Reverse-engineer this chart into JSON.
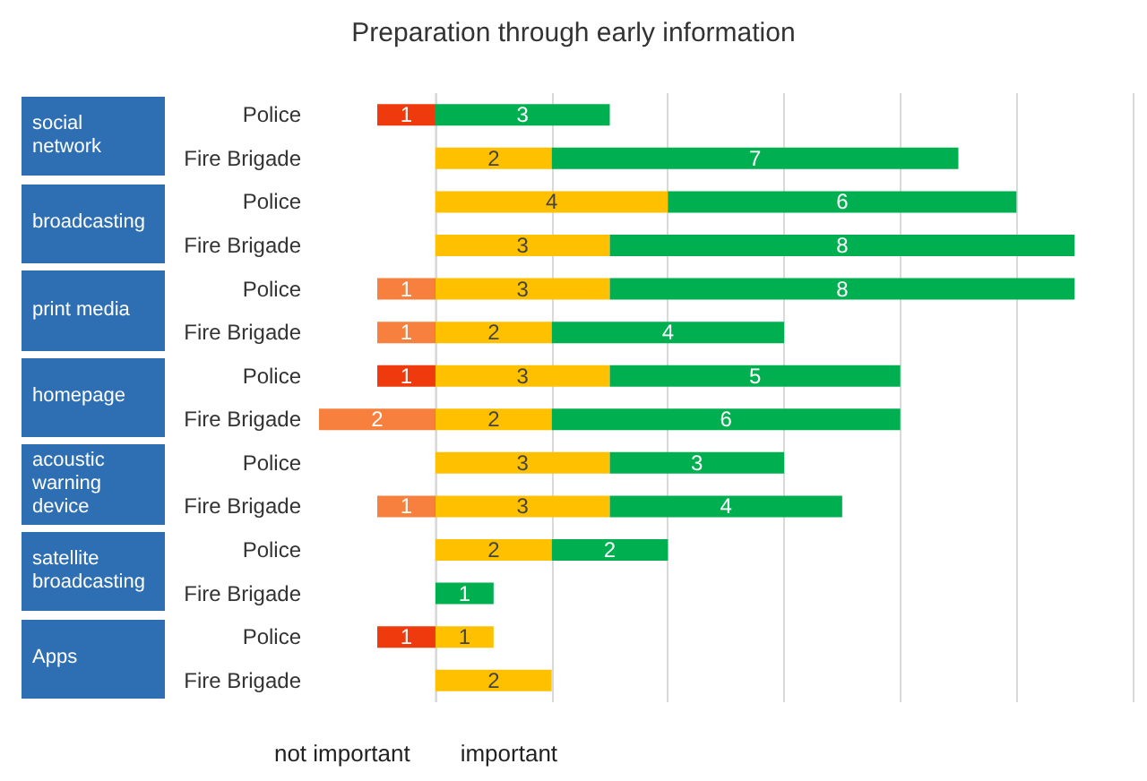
{
  "chart_data": [
    {
      "type": "bar",
      "orientation": "horizontal",
      "stacked": true,
      "title": "Preparation through early information",
      "categories": [
        "Police",
        "Fire Brigade",
        "Police",
        "Fire Brigade",
        "Police",
        "Fire Brigade",
        "Police",
        "Fire Brigade",
        "Police",
        "Fire Brigade",
        "Police",
        "Fire Brigade",
        "Police",
        "Fire Brigade"
      ],
      "series": [
        {
          "color": "#f8803e",
          "values": [
            null,
            null,
            null,
            null,
            1,
            1,
            null,
            2,
            null,
            1,
            null,
            null,
            null,
            null
          ],
          "value_labels": [
            null,
            null,
            null,
            null,
            "1",
            "1",
            null,
            "2",
            null,
            "1",
            null,
            null,
            null,
            null
          ]
        },
        {
          "color": "#ee3a0c",
          "values": [
            1,
            null,
            null,
            null,
            null,
            null,
            1,
            null,
            null,
            null,
            null,
            null,
            1,
            null
          ],
          "value_labels": [
            "1",
            null,
            null,
            null,
            null,
            null,
            "1",
            null,
            null,
            null,
            null,
            null,
            "1",
            null
          ]
        }
      ],
      "xlim": [
        2,
        0
      ],
      "ref_lines": [
        {
          "axis": "x",
          "value": 0,
          "color": "#808080"
        }
      ],
      "tick_labels": "y",
      "annotations": [
        "social network",
        "broadcasting",
        "print media",
        "homepage",
        "acoustic warning device",
        "satellite broadcasting",
        "Apps",
        "not important"
      ]
    },
    {
      "type": "bar",
      "orientation": "horizontal",
      "stacked": true,
      "categories": [
        null,
        null,
        null,
        null,
        null,
        null,
        null,
        null,
        null,
        null,
        null,
        null,
        null,
        null
      ],
      "series": [
        {
          "color": "#ffc000",
          "values": [
            null,
            2,
            4,
            3,
            3,
            2,
            3,
            2,
            3,
            3,
            2,
            null,
            1,
            2
          ],
          "value_labels": [
            null,
            "2",
            "4",
            "3",
            "3",
            "2",
            "3",
            "2",
            "3",
            "3",
            "2",
            null,
            "1",
            "2"
          ]
        },
        {
          "color": "#00b050",
          "values": [
            3,
            7,
            6,
            8,
            8,
            4,
            5,
            6,
            3,
            4,
            2,
            1,
            null,
            null
          ],
          "value_labels": [
            "3",
            "7",
            "6",
            "8",
            "8",
            "4",
            "5",
            "6",
            "3",
            "4",
            "2",
            "1",
            null,
            null
          ]
        }
      ],
      "grid": "x",
      "tick_labels": false,
      "annotations": [
        "important"
      ]
    }
  ]
}
